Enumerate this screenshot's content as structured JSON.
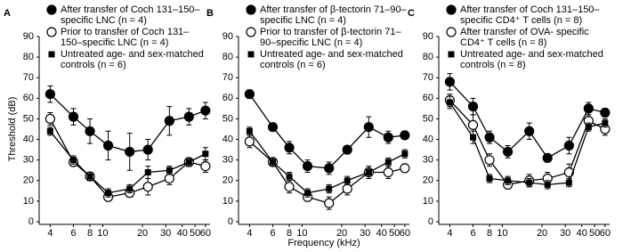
{
  "chart_data": [
    {
      "type": "line",
      "label": "A",
      "y_label": "Threshold (dB)",
      "x": [
        4,
        6,
        8,
        11,
        16,
        22,
        32,
        45,
        60
      ],
      "xlim": [
        3.3,
        65
      ],
      "xticks": [
        4,
        6,
        8,
        10,
        20,
        30,
        40,
        50,
        60
      ],
      "xscale": "log",
      "ylim": [
        0,
        90
      ],
      "yticks": [
        0,
        10,
        20,
        30,
        40,
        50,
        60,
        70,
        80,
        90
      ],
      "legend": "upper left",
      "series": [
        {
          "name": "After transfer of Coch 131–150–specific LNC (n = 4)",
          "color": "#000000",
          "marker": "filled-circle",
          "values": [
            62,
            51,
            44,
            37,
            34,
            35,
            49,
            51,
            54
          ],
          "errors": [
            4,
            4,
            6,
            7,
            9,
            5,
            7,
            4,
            4
          ]
        },
        {
          "name": "Prior to transfer of Coch 131–150–specific LNC (n = 4)",
          "color": "#000000",
          "marker": "open-circle",
          "values": [
            50,
            29,
            22,
            12,
            14,
            17,
            21,
            29,
            27
          ],
          "errors": [
            3,
            2,
            2,
            2,
            2,
            4,
            3,
            2,
            3
          ]
        },
        {
          "name": "Untreated age- and sex-matched controls (n = 6)",
          "color": "#000000",
          "marker": "square",
          "values": [
            44,
            30,
            22,
            14,
            16,
            24,
            25,
            29,
            33
          ],
          "errors": [
            2,
            2,
            2,
            2,
            2,
            3,
            2,
            2,
            3
          ]
        }
      ]
    },
    {
      "type": "line",
      "label": "B",
      "x_label": "Frequency (kHz)",
      "x": [
        4,
        6,
        8,
        11,
        16,
        22,
        32,
        45,
        60
      ],
      "xlim": [
        3.3,
        65
      ],
      "xticks": [
        4,
        6,
        8,
        10,
        20,
        30,
        40,
        50,
        60
      ],
      "xscale": "log",
      "ylim": [
        0,
        90
      ],
      "yticks": [
        0,
        10,
        20,
        30,
        40,
        50,
        60,
        70,
        80,
        90
      ],
      "legend": "upper left",
      "series": [
        {
          "name": "After transfer of β-tectorin 71–90–specific LNC (n = 4)",
          "color": "#000000",
          "marker": "filled-circle",
          "values": [
            62,
            46,
            36,
            27,
            26,
            35,
            46,
            41,
            42
          ],
          "errors": [
            2,
            2,
            3,
            3,
            3,
            2,
            5,
            3,
            2
          ]
        },
        {
          "name": "Prior to transfer of β-tectorin 71–90–specific LNC (n = 4)",
          "color": "#000000",
          "marker": "open-circle",
          "values": [
            39,
            29,
            17,
            12,
            9,
            16,
            24,
            24,
            26
          ],
          "errors": [
            3,
            2,
            3,
            2,
            3,
            3,
            3,
            3,
            2
          ]
        },
        {
          "name": "Untreated age- and sex-matched controls (n = 6)",
          "color": "#000000",
          "marker": "square",
          "values": [
            44,
            29,
            22,
            14,
            16,
            20,
            24,
            29,
            33
          ],
          "errors": [
            2,
            2,
            2,
            2,
            2,
            2,
            2,
            2,
            2
          ]
        }
      ]
    },
    {
      "type": "line",
      "label": "C",
      "x": [
        4,
        6,
        8,
        11,
        16,
        22,
        32,
        45,
        60
      ],
      "xlim": [
        3.3,
        65
      ],
      "xticks": [
        4,
        6,
        8,
        10,
        20,
        30,
        40,
        50,
        60
      ],
      "xscale": "log",
      "ylim": [
        0,
        90
      ],
      "yticks": [
        0,
        10,
        20,
        30,
        40,
        50,
        60,
        70,
        80,
        90
      ],
      "legend": "upper left",
      "series": [
        {
          "name": "After transfer of Coch 131–150–specific CD4⁺ T cells (n = 8)",
          "color": "#000000",
          "marker": "filled-circle",
          "values": [
            68,
            56,
            41,
            34,
            44,
            31,
            37,
            55,
            53
          ],
          "errors": [
            4,
            4,
            3,
            3,
            4,
            2,
            4,
            3,
            2
          ]
        },
        {
          "name": "After transfer of OVA- specific CD4⁺ T cells (n = 8)",
          "color": "#000000",
          "marker": "open-circle",
          "values": [
            59,
            47,
            30,
            18,
            20,
            21,
            24,
            49,
            45
          ],
          "errors": [
            3,
            5,
            3,
            2,
            3,
            3,
            4,
            3,
            3
          ]
        },
        {
          "name": "Untreated age- and sex-matched controls (n = 8)",
          "color": "#000000",
          "marker": "square",
          "values": [
            58,
            41,
            21,
            20,
            19,
            18,
            19,
            46,
            48
          ],
          "errors": [
            3,
            3,
            2,
            2,
            2,
            2,
            2,
            2,
            2
          ]
        }
      ]
    }
  ]
}
